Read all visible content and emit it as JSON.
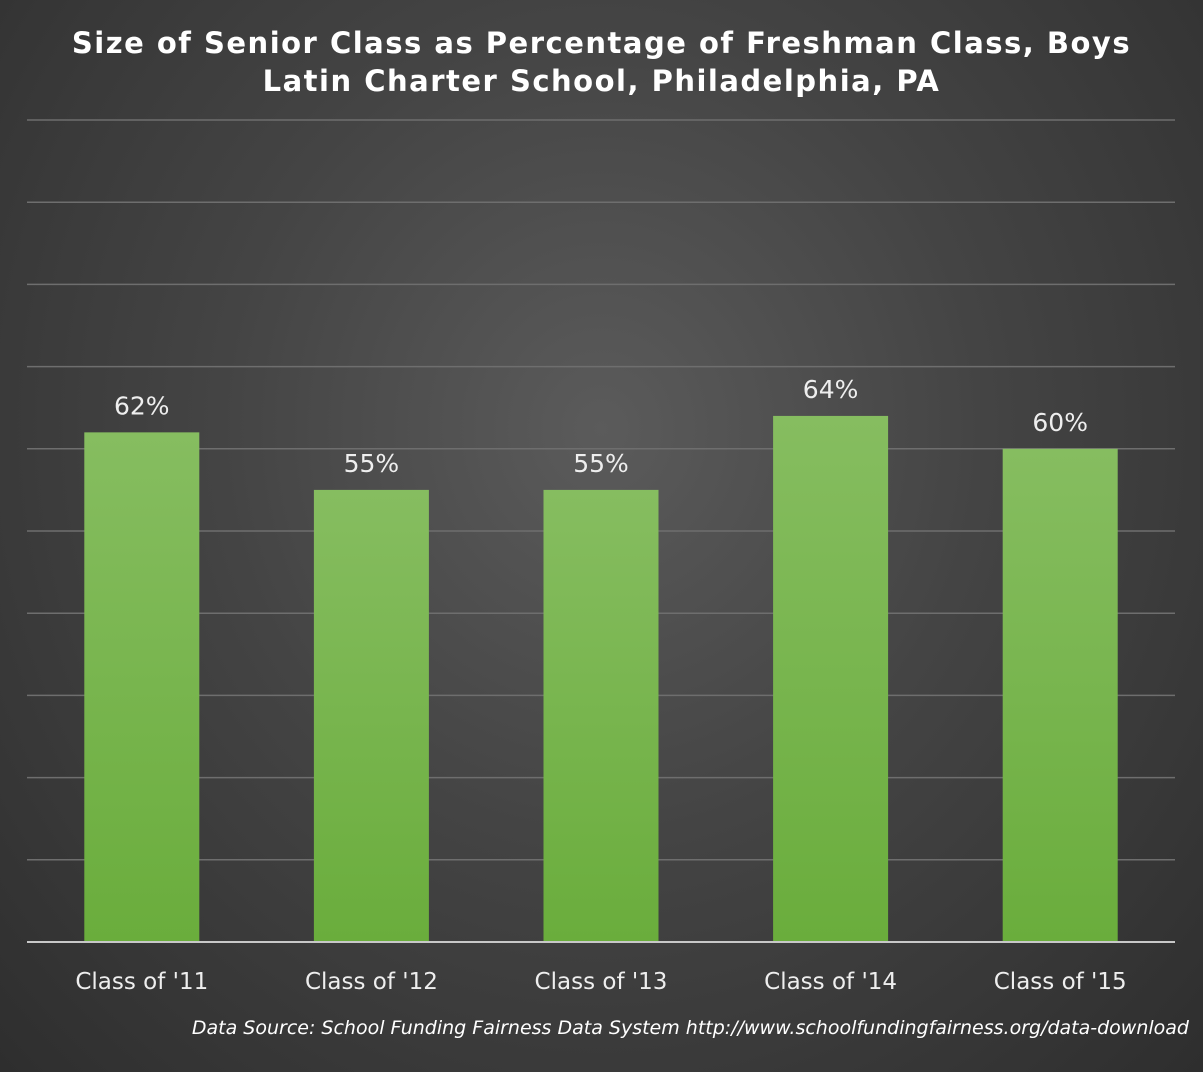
{
  "chart_data": {
    "type": "bar",
    "title": "Size of Senior Class as Percentage of Freshman Class, Boys",
    "subtitle": "Latin Charter School, Philadelphia, PA",
    "categories": [
      "Class of '11",
      "Class of '12",
      "Class of '13",
      "Class of '14",
      "Class of '15"
    ],
    "values": [
      62,
      55,
      55,
      64,
      60
    ],
    "data_labels": [
      "62%",
      "55%",
      "55%",
      "64%",
      "60%"
    ],
    "ylim": [
      0,
      100
    ],
    "gridlines": [
      0,
      10,
      20,
      30,
      40,
      50,
      60,
      70,
      80,
      90,
      100
    ],
    "grid": true,
    "legend": "none",
    "bar_color": "#6aad3c",
    "bar_color_top": "#86bd60"
  },
  "source_text": "Data Source: School Funding Fairness Data System http://www.schoolfundingfairness.org/data-download"
}
